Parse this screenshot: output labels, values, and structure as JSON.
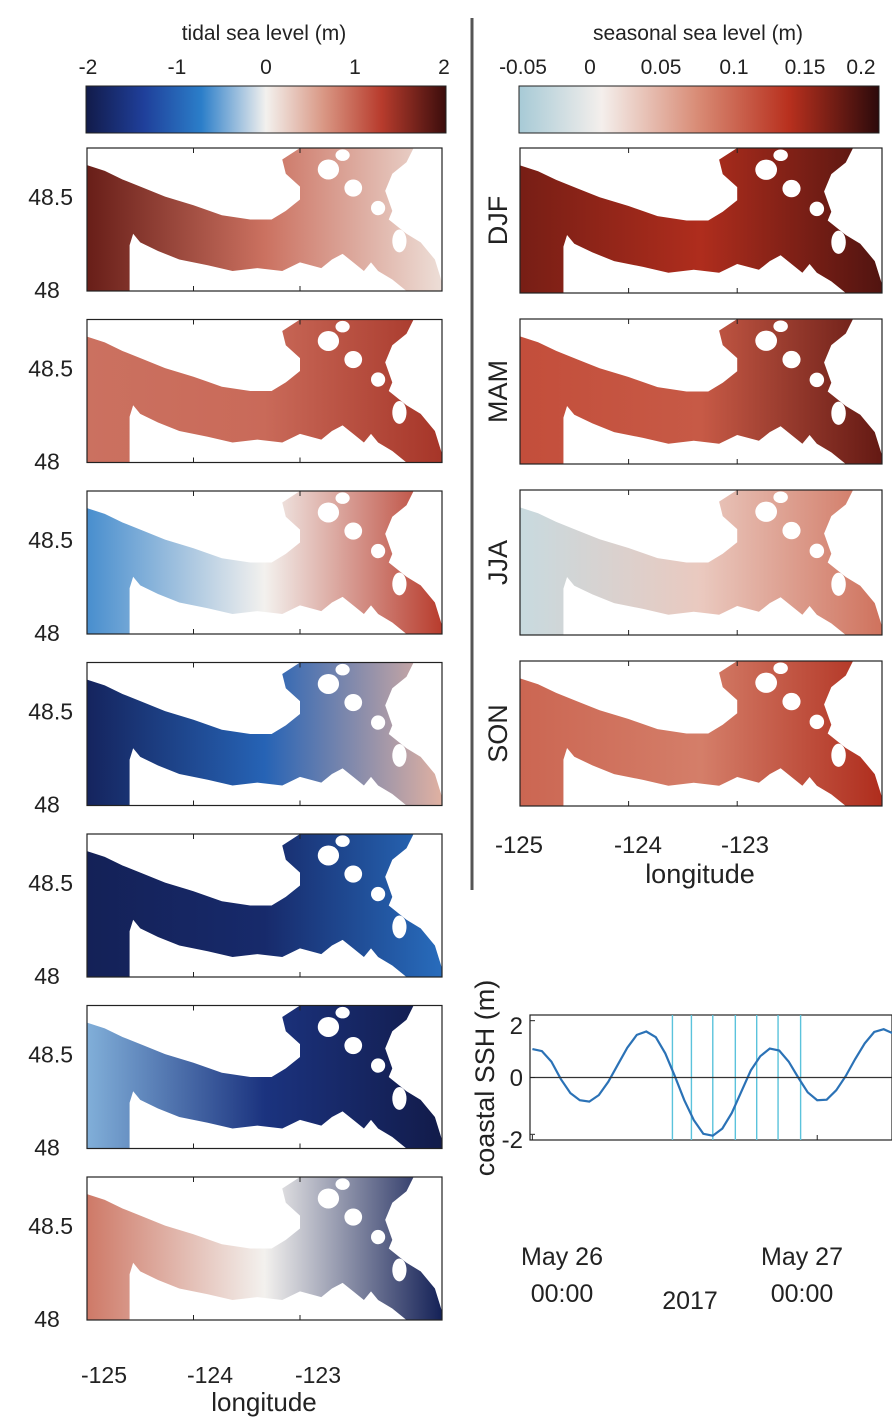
{
  "colors": {
    "water_mask_bg": "#ffffff",
    "axis": "#222222",
    "divider": "#555555",
    "line_series": "#2b72b6",
    "snapshot_markers": "#5bc3dc"
  },
  "tidal_colorbar": {
    "label": "tidal sea level (m)",
    "ticks": [
      "-2",
      "-1",
      "0",
      "1",
      "2"
    ],
    "range": [
      -2,
      2
    ],
    "colormap": "balance (dark blue - white - dark red)"
  },
  "seasonal_colorbar": {
    "label": "seasonal sea level (m)",
    "ticks": [
      "-0.05",
      "0",
      "0.05",
      "0.1",
      "0.15",
      "0.2"
    ],
    "range": [
      -0.07,
      0.23
    ],
    "colormap": "light blue - white - dark red"
  },
  "left_panels": {
    "y_ticks": [
      "48.5",
      "48"
    ],
    "x_ticks": [
      "-125",
      "-124",
      "-123"
    ],
    "xlabel": "longitude"
  },
  "right_panels": {
    "seasons": [
      "DJF",
      "MAM",
      "JJA",
      "SON"
    ],
    "x_ticks": [
      "-125",
      "-124",
      "-123"
    ],
    "xlabel": "longitude"
  },
  "line_chart": {
    "ylabel": "coastal SSH (m)",
    "y_ticks": [
      "2",
      "0",
      "-2"
    ],
    "x_tick_day1": "May 26",
    "x_tick_time1": "00:00",
    "x_tick_day2": "May 27",
    "x_tick_time2": "00:00",
    "year_label": "2017"
  },
  "chart_data": [
    {
      "type": "heatmap",
      "title": "",
      "colorbar_label": "tidal sea level (m)",
      "xlabel": "longitude",
      "xlim": [
        -125.2,
        -121.9
      ],
      "ylim": [
        47.95,
        48.8
      ],
      "x_ticks": [
        -125,
        -124,
        -123
      ],
      "y_ticks": [
        48,
        48.5
      ],
      "panels": [
        {
          "west": 1.75,
          "mid": 0.95,
          "east": 0.15
        },
        {
          "west": 0.95,
          "mid": 1.0,
          "east": 1.4
        },
        {
          "west": -0.6,
          "mid": 0.0,
          "east": 1.3
        },
        {
          "west": -1.85,
          "mid": -1.0,
          "east": 0.5
        },
        {
          "west": -1.9,
          "mid": -1.75,
          "east": -0.9
        },
        {
          "west": -0.4,
          "mid": -1.6,
          "east": -2.0
        },
        {
          "west": 0.9,
          "mid": 0.0,
          "east": -1.9
        }
      ]
    },
    {
      "type": "heatmap",
      "title": "",
      "colorbar_label": "seasonal sea level (m)",
      "xlabel": "longitude",
      "xlim": [
        -125.2,
        -121.9
      ],
      "ylim": [
        47.95,
        48.8
      ],
      "x_ticks": [
        -125,
        -124,
        -123
      ],
      "series": [
        {
          "name": "DJF",
          "west": 0.19,
          "mid": 0.16,
          "east": 0.21
        },
        {
          "name": "MAM",
          "west": 0.13,
          "mid": 0.12,
          "east": 0.2
        },
        {
          "name": "JJA",
          "west": -0.04,
          "mid": 0.03,
          "east": 0.1
        },
        {
          "name": "SON",
          "west": 0.11,
          "mid": 0.09,
          "east": 0.16
        }
      ]
    },
    {
      "type": "line",
      "title": "",
      "ylabel": "coastal SSH (m)",
      "x_hours": [
        0,
        0.8,
        1.6,
        2.4,
        3.2,
        4,
        4.8,
        5.6,
        6.4,
        7.2,
        8,
        8.8,
        9.6,
        10.4,
        11.2,
        12,
        12.8,
        13.6,
        14.4,
        15.2,
        16,
        16.8,
        17.6,
        18.4,
        19.2,
        20,
        20.8,
        21.6,
        22.4,
        23.2,
        24,
        24.8,
        25.6,
        26.4,
        27.2,
        28,
        28.8,
        29.6,
        30.4
      ],
      "values": [
        1.0,
        0.93,
        0.56,
        -0.06,
        -0.55,
        -0.8,
        -0.85,
        -0.62,
        -0.15,
        0.45,
        1.05,
        1.5,
        1.62,
        1.42,
        0.85,
        0.05,
        -0.8,
        -1.5,
        -1.98,
        -2.05,
        -1.8,
        -1.25,
        -0.5,
        0.25,
        0.75,
        1.02,
        0.95,
        0.56,
        0.0,
        -0.52,
        -0.8,
        -0.78,
        -0.45,
        0.05,
        0.65,
        1.2,
        1.6,
        1.7,
        1.55
      ],
      "snapshot_hours": [
        11.8,
        13.4,
        15.2,
        17.1,
        18.9,
        20.7,
        22.6
      ],
      "ylim": [
        -2.2,
        2.2
      ],
      "xlim": [
        -0.2,
        30.3
      ],
      "x_ticks_hours": [
        0,
        24
      ],
      "zero_line": true
    }
  ]
}
